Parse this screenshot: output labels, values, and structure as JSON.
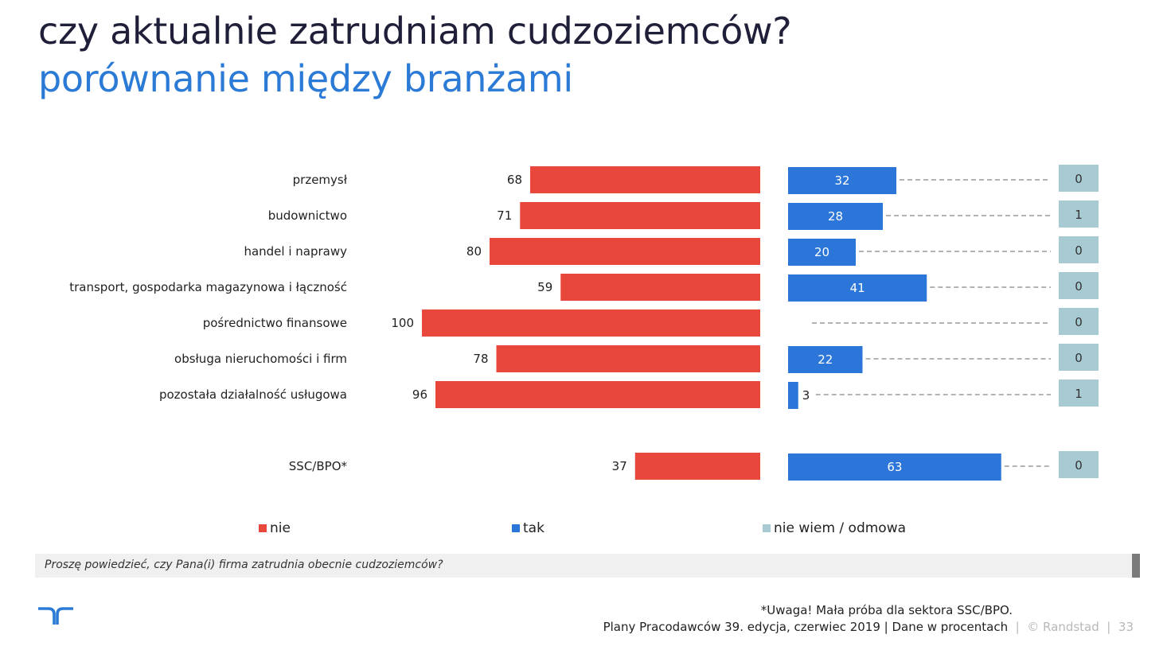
{
  "header": {
    "title": "czy aktualnie zatrudniam cudzoziemców?",
    "subtitle": "porównanie między branżami"
  },
  "chart_data": {
    "type": "bar",
    "orientation": "horizontal",
    "categories": [
      "przemysł",
      "budownictwo",
      "handel i naprawy",
      "transport, gospodarka magazynowa i łączność",
      "pośrednictwo finansowe",
      "obsługa nieruchomości i firm",
      "pozostała działalność usługowa",
      "SSC/BPO*"
    ],
    "series": [
      {
        "name": "nie",
        "color": "#e8473b",
        "values": [
          68,
          71,
          80,
          59,
          100,
          78,
          96,
          37
        ]
      },
      {
        "name": "tak",
        "color": "#2b76d8",
        "values": [
          32,
          28,
          20,
          41,
          0,
          22,
          3,
          63
        ]
      },
      {
        "name": "nie wiem / odmowa",
        "color": "#a8cad3",
        "values": [
          0,
          1,
          0,
          0,
          0,
          0,
          1,
          0
        ]
      }
    ],
    "xlim": [
      0,
      100
    ],
    "legend_position": "bottom",
    "grid": false
  },
  "legend": [
    {
      "label": "nie",
      "color": "#e8473b"
    },
    {
      "label": "tak",
      "color": "#2b76d8"
    },
    {
      "label": "nie wiem / odmowa",
      "color": "#a8cad3"
    }
  ],
  "question": "Proszę powiedzieć, czy Pana(i) firma zatrudnia obecnie cudzoziemców?",
  "footnote": "*Uwaga! Mała próba dla sektora SSC/BPO.",
  "footer": {
    "source": "Plany Pracodawców 39. edycja, czerwiec 2019",
    "separator": " | ",
    "units": "Dane w procentach",
    "copyright": "© Randstad",
    "page": "33"
  },
  "colors": {
    "title": "#1f1f3a",
    "subtitle": "#2b7bd6",
    "logo": "#2b7bd6"
  }
}
